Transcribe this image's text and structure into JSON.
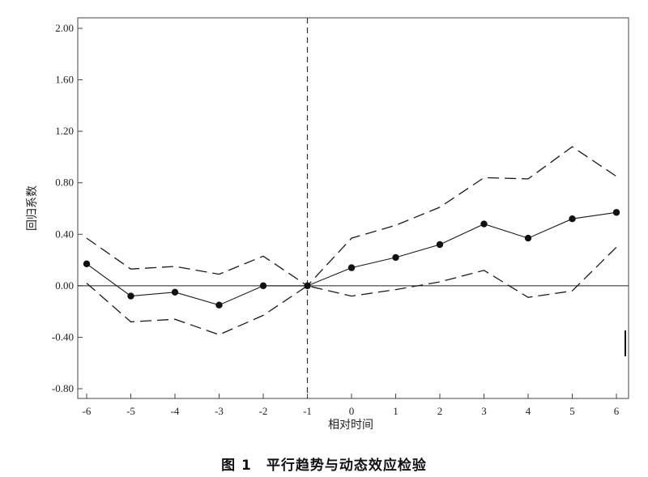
{
  "chart_data": {
    "type": "line",
    "title": "",
    "xlabel": "相对时间",
    "ylabel": "回归系数",
    "x": [
      -6,
      -5,
      -4,
      -3,
      -2,
      -1,
      0,
      1,
      2,
      3,
      4,
      5,
      6
    ],
    "xlim": [
      -6,
      6
    ],
    "ylim": [
      -0.8,
      2.0
    ],
    "x_ticks": [
      "-6",
      "-5",
      "-4",
      "-3",
      "-2",
      "-1",
      "0",
      "1",
      "2",
      "3",
      "4",
      "5",
      "6"
    ],
    "y_ticks": [
      "2.00",
      "1.60",
      "1.20",
      "0.80",
      "0.40",
      "0.00",
      "-0.40",
      "-0.80"
    ],
    "y_tick_values": [
      2.0,
      1.6,
      1.2,
      0.8,
      0.4,
      0.0,
      -0.4,
      -0.8
    ],
    "series": [
      {
        "values": [
          0.17,
          -0.08,
          -0.05,
          -0.15,
          0.0,
          0.0,
          0.14,
          0.22,
          0.32,
          0.48,
          0.37,
          0.52,
          0.57
        ],
        "style": "solid-with-markers"
      },
      {
        "values": [
          0.37,
          0.13,
          0.15,
          0.09,
          0.23,
          0.0,
          0.37,
          0.47,
          0.61,
          0.84,
          0.83,
          1.08,
          0.85
        ],
        "style": "dashed"
      },
      {
        "values": [
          0.02,
          -0.28,
          -0.26,
          -0.38,
          -0.23,
          0.0,
          -0.08,
          -0.03,
          0.03,
          0.12,
          -0.09,
          -0.04,
          0.3
        ],
        "style": "dashed"
      }
    ],
    "reference_lines": {
      "horizontal_y": 0.0,
      "vertical_x": -1
    },
    "grid": false,
    "colors": {
      "line": "#1a1a1a",
      "axis": "#333333"
    }
  },
  "caption": "图 1　平行趋势与动态效应检验"
}
